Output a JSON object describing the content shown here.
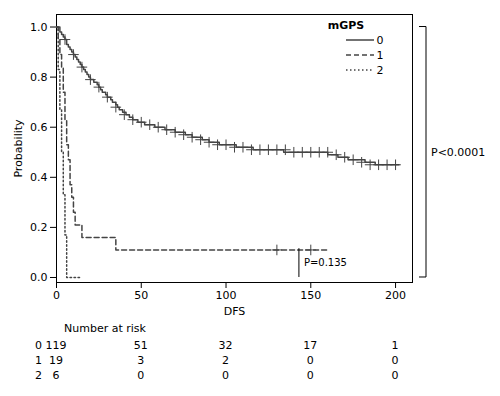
{
  "chart_data": {
    "type": "line",
    "xlabel": "DFS",
    "ylabel": "Probability",
    "xlim": [
      0,
      210
    ],
    "ylim": [
      -0.02,
      1.05
    ],
    "xticks": [
      0,
      50,
      100,
      150,
      200
    ],
    "yticks": [
      {
        "value": 0.0,
        "label": "0.0"
      },
      {
        "value": 0.2,
        "label": "0.2"
      },
      {
        "value": 0.4,
        "label": "0.4"
      },
      {
        "value": 0.6,
        "label": "0.6"
      },
      {
        "value": 0.8,
        "label": "0.8"
      },
      {
        "value": 1.0,
        "label": "1.0"
      }
    ],
    "legend": "upper right",
    "legend_title": "mGPS",
    "series": [
      {
        "name": "0",
        "color": "#444444",
        "line_style": "solid",
        "x": [
          0,
          1,
          2,
          3,
          4,
          5,
          6,
          7,
          8,
          9,
          10,
          11,
          12,
          13,
          14,
          15,
          16,
          17,
          18,
          19,
          20,
          22,
          24,
          25,
          26,
          27,
          28,
          29,
          30,
          31,
          32,
          33,
          34,
          35,
          36,
          37,
          38,
          39,
          40,
          41,
          42,
          43,
          44,
          45,
          46,
          47,
          48,
          50,
          52,
          54,
          56,
          58,
          60,
          62,
          64,
          66,
          68,
          70,
          72,
          74,
          76,
          78,
          80,
          82,
          84,
          86,
          88,
          90,
          92,
          94,
          96,
          98,
          100,
          102,
          104,
          106,
          108,
          110,
          112,
          114,
          116,
          118,
          120,
          122,
          124,
          126,
          128,
          130,
          132,
          134,
          136,
          138,
          140,
          142,
          144,
          146,
          148,
          150,
          152,
          154,
          156,
          158,
          160,
          162,
          164,
          166,
          168,
          170,
          172,
          174,
          176,
          178,
          180,
          182,
          184,
          186,
          188,
          190,
          192,
          194,
          196,
          198,
          200,
          202
        ],
        "values": [
          1.0,
          1.0,
          0.98,
          0.97,
          0.96,
          0.95,
          0.93,
          0.92,
          0.91,
          0.9,
          0.89,
          0.88,
          0.87,
          0.86,
          0.85,
          0.84,
          0.83,
          0.82,
          0.81,
          0.8,
          0.79,
          0.78,
          0.77,
          0.76,
          0.75,
          0.74,
          0.74,
          0.73,
          0.72,
          0.72,
          0.71,
          0.7,
          0.7,
          0.69,
          0.68,
          0.67,
          0.67,
          0.66,
          0.66,
          0.65,
          0.65,
          0.64,
          0.64,
          0.63,
          0.63,
          0.63,
          0.62,
          0.62,
          0.61,
          0.61,
          0.61,
          0.6,
          0.6,
          0.6,
          0.59,
          0.59,
          0.59,
          0.58,
          0.58,
          0.58,
          0.57,
          0.57,
          0.56,
          0.56,
          0.56,
          0.55,
          0.55,
          0.54,
          0.54,
          0.54,
          0.53,
          0.53,
          0.53,
          0.53,
          0.53,
          0.52,
          0.52,
          0.52,
          0.52,
          0.52,
          0.51,
          0.51,
          0.51,
          0.51,
          0.51,
          0.51,
          0.51,
          0.51,
          0.51,
          0.5,
          0.5,
          0.5,
          0.5,
          0.5,
          0.5,
          0.5,
          0.5,
          0.5,
          0.5,
          0.5,
          0.5,
          0.5,
          0.49,
          0.49,
          0.49,
          0.48,
          0.48,
          0.48,
          0.47,
          0.47,
          0.47,
          0.47,
          0.47,
          0.46,
          0.46,
          0.46,
          0.45,
          0.45,
          0.45,
          0.45,
          0.45,
          0.45,
          0.45,
          0.45
        ],
        "censor_x": [
          5,
          10,
          15,
          20,
          25,
          30,
          35,
          40,
          45,
          50,
          55,
          60,
          65,
          70,
          75,
          80,
          85,
          90,
          95,
          100,
          105,
          110,
          115,
          120,
          125,
          130,
          135,
          140,
          145,
          150,
          155,
          160,
          165,
          170,
          175,
          180,
          185,
          190,
          195,
          200
        ],
        "censor_values": [
          0.95,
          0.89,
          0.84,
          0.79,
          0.76,
          0.72,
          0.68,
          0.65,
          0.63,
          0.62,
          0.61,
          0.6,
          0.59,
          0.58,
          0.57,
          0.56,
          0.55,
          0.54,
          0.53,
          0.53,
          0.52,
          0.52,
          0.51,
          0.51,
          0.51,
          0.51,
          0.51,
          0.5,
          0.5,
          0.5,
          0.5,
          0.5,
          0.49,
          0.48,
          0.47,
          0.46,
          0.45,
          0.45,
          0.45,
          0.45
        ]
      },
      {
        "name": "1",
        "color": "#444444",
        "line_style": "dashed",
        "x": [
          0,
          1,
          2,
          3,
          4,
          5,
          6,
          7,
          8,
          9,
          10,
          11,
          12,
          13,
          14,
          15,
          16,
          17,
          18,
          19,
          20,
          22,
          25,
          30,
          35,
          40,
          50,
          60,
          70,
          80,
          90,
          100,
          110,
          120,
          130,
          140,
          150,
          160
        ],
        "values": [
          1.0,
          0.95,
          0.89,
          0.84,
          0.74,
          0.63,
          0.53,
          0.47,
          0.37,
          0.32,
          0.26,
          0.21,
          0.21,
          0.21,
          0.21,
          0.16,
          0.16,
          0.16,
          0.16,
          0.16,
          0.16,
          0.16,
          0.16,
          0.16,
          0.11,
          0.11,
          0.11,
          0.11,
          0.11,
          0.11,
          0.11,
          0.11,
          0.11,
          0.11,
          0.11,
          0.11,
          0.11,
          0.11
        ],
        "censor_x": [
          130,
          150
        ],
        "censor_values": [
          0.11,
          0.11
        ]
      },
      {
        "name": "2",
        "color": "#444444",
        "line_style": "dotted",
        "x": [
          0,
          1,
          2,
          3,
          4,
          5,
          6,
          7,
          8,
          9,
          10,
          11,
          12,
          13,
          14,
          15
        ],
        "values": [
          1.0,
          0.83,
          0.67,
          0.5,
          0.33,
          0.17,
          0.0,
          0.0,
          0.0,
          0.0,
          0.0,
          0.0,
          0.0,
          0.0,
          0.0,
          0.0
        ]
      }
    ],
    "annotations": [
      {
        "text": "P=0.135",
        "x": 143,
        "y": [
          0.0,
          0.115
        ]
      },
      {
        "text": "P<0.0001",
        "y": [
          0.0,
          1.0
        ]
      }
    ],
    "number_at_risk": {
      "label": "Number at risk",
      "x": [
        0,
        50,
        100,
        150,
        200
      ],
      "rows": [
        {
          "name": "0",
          "values": [
            119,
            51,
            32,
            17,
            1
          ]
        },
        {
          "name": "1",
          "values": [
            19,
            3,
            2,
            0,
            0
          ]
        },
        {
          "name": "2",
          "values": [
            6,
            0,
            0,
            0,
            0
          ]
        }
      ]
    }
  }
}
